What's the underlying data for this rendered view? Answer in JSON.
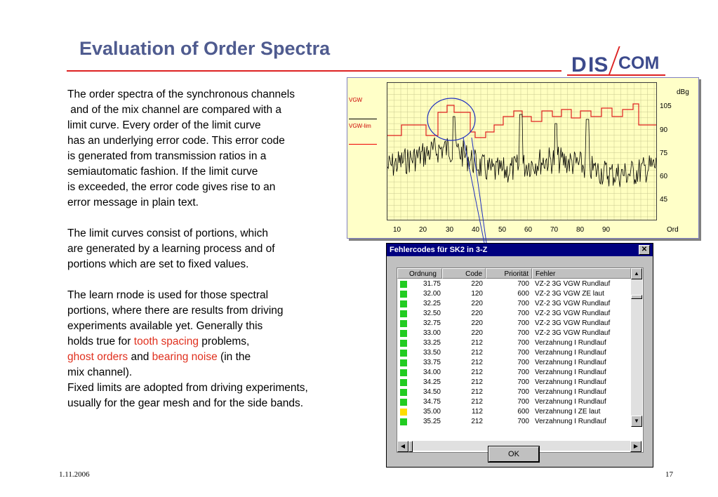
{
  "title": "Evaluation of Order Spectra",
  "logo": {
    "d": "D",
    "is": "IS",
    "com": "COM"
  },
  "paragraphs": {
    "p1": [
      "The order spectra of the synchronous channels",
      " and of the mix channel are compared with a",
      "limit curve. Every order of the limit curve",
      "has an underlying error code. This error code",
      "is generated from transmission ratios in a",
      "semiautomatic fashion. If the limit curve",
      "is exceeded, the error code gives rise to an",
      "error message in plain text."
    ],
    "p2": [
      "The limit curves consist of portions, which",
      "are generated by a learning process and of",
      "portions which are set to fixed values."
    ],
    "p3": [
      "The learn rnode is used for those spectral",
      "portions, where there are results from driving",
      "experiments available yet. Generally this"
    ],
    "p3_line4_pre": "holds true for ",
    "p3_line4_red": "tooth spacing",
    "p3_line4_post": " problems,",
    "p3_line5_red1": "ghost orders",
    "p3_line5_mid": " and ",
    "p3_line5_red2": "bearing noise",
    "p3_line5_post": " (in the",
    "p3_line6": "mix channel).",
    "p3_line7": "Fixed limits are adopted from driving experiments,",
    "p3_line8": "usually for the gear mesh and for the side bands."
  },
  "chart": {
    "legend1": "VGW",
    "legend2": "VGW-lim",
    "yunit": "dBg",
    "yticks": [
      "105",
      "90",
      "75",
      "60",
      "45"
    ],
    "xticks": [
      "10",
      "20",
      "30",
      "40",
      "50",
      "60",
      "70",
      "80",
      "90"
    ],
    "xunit": "Ord"
  },
  "dialog": {
    "title": "Fehlercodes für SK2 in 3-Z",
    "close": "✕",
    "headers": [
      "Ordnung",
      "Code",
      "Priorität",
      "Fehler"
    ],
    "rows": [
      {
        "ord": "31.75",
        "code": "220",
        "prio": "700",
        "fehler": "VZ-2 3G VGW Rundlauf",
        "color": "#22cc22"
      },
      {
        "ord": "32.00",
        "code": "120",
        "prio": "600",
        "fehler": "VZ-2 3G VGW ZE laut",
        "color": "#22cc22"
      },
      {
        "ord": "32.25",
        "code": "220",
        "prio": "700",
        "fehler": "VZ-2 3G VGW Rundlauf",
        "color": "#22cc22"
      },
      {
        "ord": "32.50",
        "code": "220",
        "prio": "700",
        "fehler": "VZ-2 3G VGW Rundlauf",
        "color": "#22cc22"
      },
      {
        "ord": "32.75",
        "code": "220",
        "prio": "700",
        "fehler": "VZ-2 3G VGW Rundlauf",
        "color": "#22cc22"
      },
      {
        "ord": "33.00",
        "code": "220",
        "prio": "700",
        "fehler": "VZ-2 3G VGW Rundlauf",
        "color": "#22cc22"
      },
      {
        "ord": "33.25",
        "code": "212",
        "prio": "700",
        "fehler": "Verzahnung I Rundlauf",
        "color": "#22cc22"
      },
      {
        "ord": "33.50",
        "code": "212",
        "prio": "700",
        "fehler": "Verzahnung I Rundlauf",
        "color": "#22cc22"
      },
      {
        "ord": "33.75",
        "code": "212",
        "prio": "700",
        "fehler": "Verzahnung I Rundlauf",
        "color": "#22cc22"
      },
      {
        "ord": "34.00",
        "code": "212",
        "prio": "700",
        "fehler": "Verzahnung I Rundlauf",
        "color": "#22cc22"
      },
      {
        "ord": "34.25",
        "code": "212",
        "prio": "700",
        "fehler": "Verzahnung I Rundlauf",
        "color": "#22cc22"
      },
      {
        "ord": "34.50",
        "code": "212",
        "prio": "700",
        "fehler": "Verzahnung I Rundlauf",
        "color": "#22cc22"
      },
      {
        "ord": "34.75",
        "code": "212",
        "prio": "700",
        "fehler": "Verzahnung I Rundlauf",
        "color": "#22cc22"
      },
      {
        "ord": "35.00",
        "code": "112",
        "prio": "600",
        "fehler": "Verzahnung I ZE laut",
        "color": "#ffdd00"
      },
      {
        "ord": "35.25",
        "code": "212",
        "prio": "700",
        "fehler": "Verzahnung I Rundlauf",
        "color": "#22cc22"
      }
    ],
    "ok_label": "OK"
  },
  "footer": {
    "date": "1.11.2006",
    "page": "17"
  }
}
